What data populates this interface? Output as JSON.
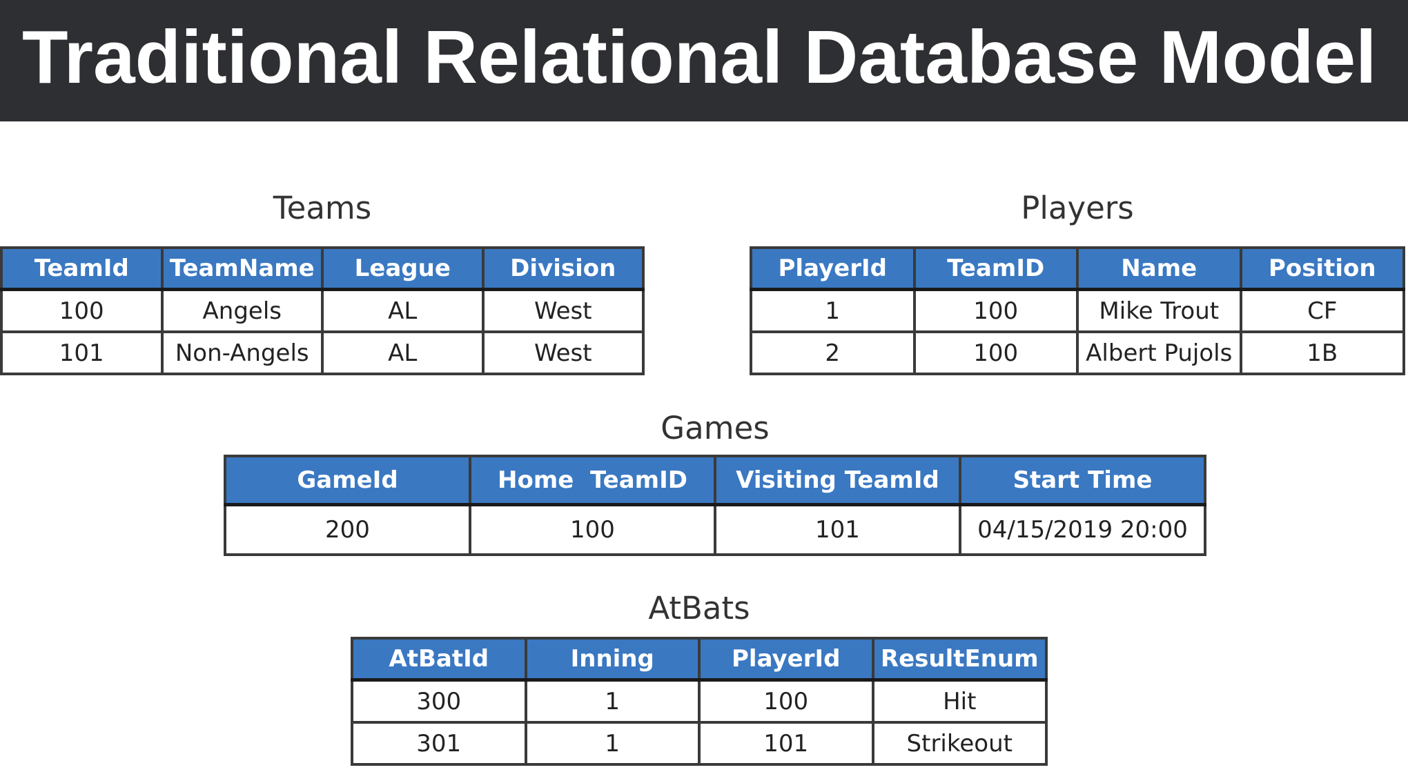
{
  "title": "Traditional Relational Database Model",
  "colors": {
    "title_bar": "#2e2f33",
    "header_fill": "#3a78c2",
    "header_text": "#ffffff",
    "border": "#2a2a2a"
  },
  "tables": {
    "teams": {
      "caption": "Teams",
      "columns": [
        "TeamId",
        "TeamName",
        "League",
        "Division"
      ],
      "rows": [
        [
          "100",
          "Angels",
          "AL",
          "West"
        ],
        [
          "101",
          "Non-Angels",
          "AL",
          "West"
        ]
      ]
    },
    "players": {
      "caption": "Players",
      "columns": [
        "PlayerId",
        "TeamID",
        "Name",
        "Position"
      ],
      "rows": [
        [
          "1",
          "100",
          "Mike Trout",
          "CF"
        ],
        [
          "2",
          "100",
          "Albert Pujols",
          "1B"
        ]
      ]
    },
    "games": {
      "caption": "Games",
      "columns": [
        "GameId",
        "Home  TeamID",
        "Visiting TeamId",
        "Start Time"
      ],
      "rows": [
        [
          "200",
          "100",
          "101",
          "04/15/2019 20:00"
        ]
      ]
    },
    "atbats": {
      "caption": "AtBats",
      "columns": [
        "AtBatId",
        "Inning",
        "PlayerId",
        "ResultEnum"
      ],
      "rows": [
        [
          "300",
          "1",
          "100",
          "Hit"
        ],
        [
          "301",
          "1",
          "101",
          "Strikeout"
        ]
      ]
    }
  }
}
